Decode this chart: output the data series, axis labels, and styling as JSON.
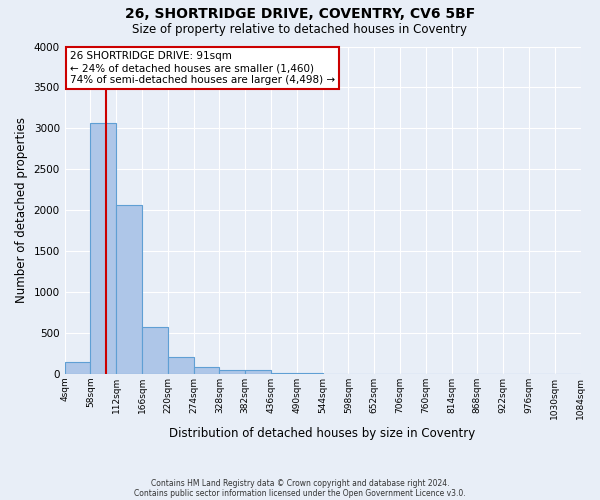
{
  "title1": "26, SHORTRIDGE DRIVE, COVENTRY, CV6 5BF",
  "title2": "Size of property relative to detached houses in Coventry",
  "xlabel": "Distribution of detached houses by size in Coventry",
  "ylabel": "Number of detached properties",
  "bin_edges": [
    4,
    58,
    112,
    166,
    220,
    274,
    328,
    382,
    436,
    490,
    544,
    598,
    652,
    706,
    760,
    814,
    868,
    922,
    976,
    1030,
    1084
  ],
  "bar_heights": [
    140,
    3060,
    2060,
    570,
    200,
    85,
    50,
    40,
    10,
    5,
    3,
    2,
    1,
    1,
    0,
    0,
    0,
    0,
    0,
    0
  ],
  "bar_color": "#aec6e8",
  "bar_edge_color": "#5f9fd4",
  "property_size": 91,
  "property_line_color": "#cc0000",
  "annotation_text": "26 SHORTRIDGE DRIVE: 91sqm\n← 24% of detached houses are smaller (1,460)\n74% of semi-detached houses are larger (4,498) →",
  "annotation_box_color": "#ffffff",
  "annotation_box_edge_color": "#cc0000",
  "ylim": [
    0,
    4000
  ],
  "yticks": [
    0,
    500,
    1000,
    1500,
    2000,
    2500,
    3000,
    3500,
    4000
  ],
  "background_color": "#e8eef7",
  "grid_color": "#ffffff",
  "footer1": "Contains HM Land Registry data © Crown copyright and database right 2024.",
  "footer2": "Contains public sector information licensed under the Open Government Licence v3.0."
}
